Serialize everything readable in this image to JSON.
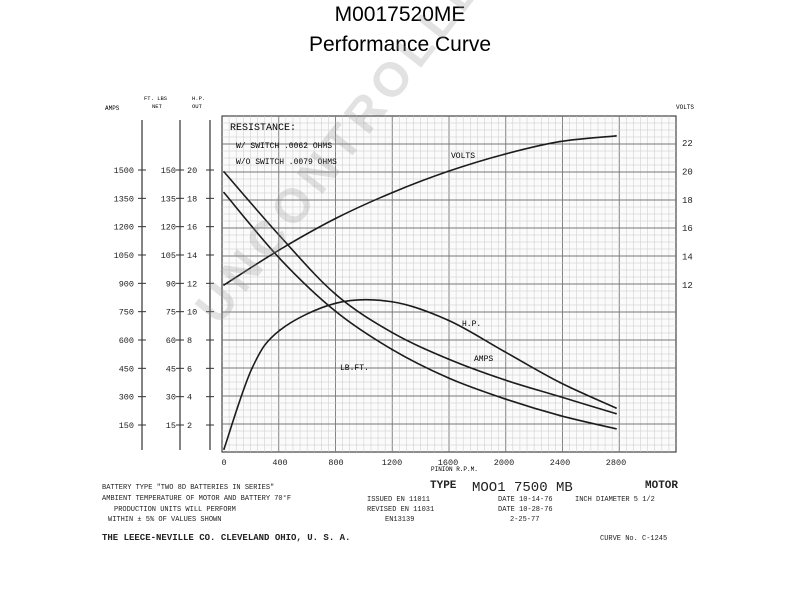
{
  "header": {
    "model": "M0017520ME",
    "subtitle": "Performance Curve"
  },
  "watermark": "UNCONTROLLED COPY",
  "axes": {
    "amps": {
      "title": "AMPS",
      "ticks": [
        "1500",
        "1350",
        "1200",
        "1050",
        "900",
        "750",
        "600",
        "450",
        "300",
        "150"
      ]
    },
    "ftlbs": {
      "title_1": "FT. LBS",
      "title_2": "NET",
      "ticks": [
        "150",
        "135",
        "120",
        "105",
        "90",
        "75",
        "60",
        "45",
        "30",
        "15"
      ]
    },
    "hp": {
      "title_1": "H.P.",
      "title_2": "OUT",
      "ticks": [
        "20",
        "18",
        "16",
        "14",
        "12",
        "10",
        "8",
        "6",
        "4",
        "2"
      ]
    },
    "volts": {
      "title": "VOLTS",
      "ticks": [
        "22",
        "20",
        "18",
        "16",
        "14",
        "12"
      ]
    },
    "x": {
      "ticks": [
        "0",
        "400",
        "800",
        "1200",
        "1600",
        "2000",
        "2400",
        "2800"
      ],
      "label": "PINION R.P.M."
    }
  },
  "resistance": {
    "title": "RESISTANCE:",
    "line1": "W/ SWITCH .0062 OHMS",
    "line2": "W/O SWITCH .0079 OHMS"
  },
  "curve_labels": {
    "volts": "VOLTS",
    "lbft": "LB.FT.",
    "hp": "H.P.",
    "amps": "AMPS"
  },
  "footer": {
    "battery_type": "BATTERY TYPE  \"TWO 8D BATTERIES IN SERIES\"",
    "ambient": "AMBIENT TEMPERATURE OF MOTOR AND BATTERY   70°F",
    "issued": "ISSUED EN 11011",
    "revised": "REVISED EN 11031",
    "endnum": "EN13139",
    "production": "PRODUCTION UNITS WILL PERFORM",
    "within": "WITHIN ± 5% OF VALUES SHOWN",
    "type_label": "TYPE",
    "type_value": "MOO1 7500 MB",
    "motor": "MOTOR",
    "date1": "DATE 10-14-76",
    "date2": "DATE 10-28-76",
    "date3": "2-25-77",
    "inch_diameter": "INCH DIAMETER 5 1/2",
    "company": "THE LEECE-NEVILLE CO. CLEVELAND OHIO, U. S. A.",
    "curve_no": "CURVE No. C-1245"
  },
  "chart_data": {
    "type": "line",
    "title": "Performance Curve",
    "xlabel": "PINION R.P.M.",
    "xlim": [
      0,
      2800
    ],
    "series": [
      {
        "name": "VOLTS",
        "axis": "volts",
        "x": [
          0,
          400,
          800,
          1200,
          1600,
          2000,
          2400,
          2800
        ],
        "values": [
          12.0,
          14.5,
          16.7,
          18.5,
          20.0,
          21.2,
          22.1,
          22.5
        ]
      },
      {
        "name": "LB.FT.",
        "axis": "ft_lbs",
        "x": [
          0,
          400,
          800,
          1200,
          1600,
          2000,
          2400,
          2800
        ],
        "values": [
          138,
          103,
          75,
          55,
          40,
          29,
          20,
          13
        ]
      },
      {
        "name": "AMPS",
        "axis": "amps",
        "x": [
          0,
          400,
          800,
          1200,
          1600,
          2000,
          2400,
          2800
        ],
        "values": [
          1490,
          1150,
          840,
          640,
          500,
          390,
          300,
          210
        ]
      },
      {
        "name": "H.P.",
        "axis": "hp",
        "x": [
          0,
          200,
          400,
          800,
          1200,
          1600,
          2000,
          2400,
          2800
        ],
        "values": [
          0.3,
          6.0,
          8.7,
          10.6,
          10.7,
          9.4,
          7.2,
          5.0,
          3.2
        ]
      }
    ]
  }
}
